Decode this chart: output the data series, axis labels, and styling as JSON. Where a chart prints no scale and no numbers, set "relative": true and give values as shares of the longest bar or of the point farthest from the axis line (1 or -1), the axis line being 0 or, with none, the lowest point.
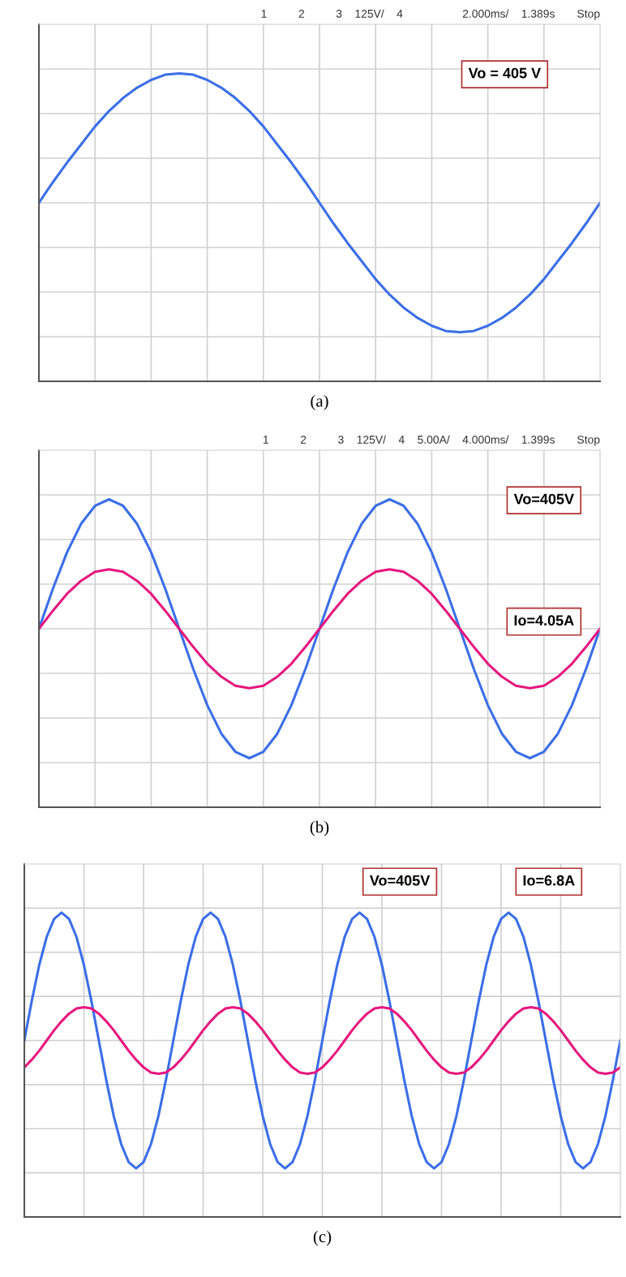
{
  "chart_data": [
    {
      "type": "line",
      "title": "1          2          3    125V/    4                   2.000ms/    1.389s       Stop",
      "xlabel": "(a)",
      "relative": true,
      "grid": true,
      "legend": false,
      "categories": [
        null,
        null,
        null,
        null,
        null,
        null,
        null,
        null,
        null,
        null,
        null,
        null,
        null,
        null,
        null,
        null,
        null,
        null,
        null,
        null,
        null,
        null,
        null,
        null,
        null,
        null,
        null,
        null,
        null,
        null,
        null,
        null,
        null,
        null,
        null,
        null,
        null,
        null,
        null,
        null,
        null
      ],
      "series": [
        {
          "color": "#3a6ee8",
          "values": [
            0,
            0.16,
            0.31,
            0.45,
            0.59,
            0.71,
            0.81,
            0.89,
            0.95,
            0.99,
            1,
            0.99,
            0.95,
            0.89,
            0.81,
            0.71,
            0.59,
            0.45,
            0.31,
            0.16,
            0,
            -0.16,
            -0.31,
            -0.45,
            -0.59,
            -0.71,
            -0.81,
            -0.89,
            -0.95,
            -0.99,
            -1,
            -0.99,
            -0.95,
            -0.89,
            -0.81,
            -0.71,
            -0.59,
            -0.45,
            -0.31,
            -0.16,
            0
          ]
        }
      ],
      "annotations": [
        "Vo = 405 V"
      ]
    },
    {
      "type": "line",
      "title": "1          2          3    125V/    4    5.00A/    4.000ms/    1.399s       Stop",
      "xlabel": "(b)",
      "relative": true,
      "grid": true,
      "legend": false,
      "categories": [
        null,
        null,
        null,
        null,
        null,
        null,
        null,
        null,
        null,
        null,
        null,
        null,
        null,
        null,
        null,
        null,
        null,
        null,
        null,
        null,
        null,
        null,
        null,
        null,
        null,
        null,
        null,
        null,
        null,
        null,
        null,
        null,
        null,
        null,
        null,
        null,
        null,
        null,
        null,
        null,
        null
      ],
      "series": [
        {
          "color": "#3a6ee8",
          "values": [
            0,
            0.31,
            0.59,
            0.81,
            0.95,
            1,
            0.95,
            0.81,
            0.59,
            0.31,
            0,
            -0.31,
            -0.59,
            -0.81,
            -0.95,
            -1,
            -0.95,
            -0.81,
            -0.59,
            -0.31,
            0,
            0.31,
            0.59,
            0.81,
            0.95,
            1,
            0.95,
            0.81,
            0.59,
            0.31,
            0,
            -0.31,
            -0.59,
            -0.81,
            -0.95,
            -1,
            -0.95,
            -0.81,
            -0.59,
            -0.31,
            0
          ]
        },
        {
          "color": "#e6167e",
          "values": [
            0,
            0.14,
            0.27,
            0.37,
            0.44,
            0.46,
            0.44,
            0.37,
            0.27,
            0.14,
            0,
            -0.14,
            -0.27,
            -0.37,
            -0.44,
            -0.46,
            -0.44,
            -0.37,
            -0.27,
            -0.14,
            0,
            0.14,
            0.27,
            0.37,
            0.44,
            0.46,
            0.44,
            0.37,
            0.27,
            0.14,
            0,
            -0.14,
            -0.27,
            -0.37,
            -0.44,
            -0.46,
            -0.44,
            -0.37,
            -0.27,
            -0.14,
            0
          ]
        }
      ],
      "annotations": [
        "Vo=405V",
        "Io=4.05A"
      ]
    },
    {
      "type": "line",
      "xlabel": "(c)",
      "relative": true,
      "grid": true,
      "legend": false,
      "categories": [
        null,
        null,
        null,
        null,
        null,
        null,
        null,
        null,
        null,
        null,
        null,
        null,
        null,
        null,
        null,
        null,
        null,
        null,
        null,
        null,
        null,
        null,
        null,
        null,
        null,
        null,
        null,
        null,
        null,
        null,
        null,
        null,
        null,
        null,
        null,
        null,
        null,
        null,
        null,
        null,
        null,
        null,
        null,
        null,
        null,
        null,
        null,
        null,
        null,
        null,
        null,
        null,
        null,
        null,
        null,
        null,
        null,
        null,
        null,
        null,
        null,
        null,
        null,
        null,
        null,
        null,
        null,
        null,
        null,
        null,
        null,
        null,
        null,
        null,
        null,
        null,
        null,
        null,
        null,
        null,
        null
      ],
      "series": [
        {
          "color": "#3a6ee8",
          "values": [
            0,
            0.31,
            0.59,
            0.81,
            0.95,
            1,
            0.95,
            0.81,
            0.59,
            0.31,
            0,
            -0.31,
            -0.59,
            -0.81,
            -0.95,
            -1,
            -0.95,
            -0.81,
            -0.59,
            -0.31,
            0,
            0.31,
            0.59,
            0.81,
            0.95,
            1,
            0.95,
            0.81,
            0.59,
            0.31,
            0,
            -0.31,
            -0.59,
            -0.81,
            -0.95,
            -1,
            -0.95,
            -0.81,
            -0.59,
            -0.31,
            0,
            0.31,
            0.59,
            0.81,
            0.95,
            1,
            0.95,
            0.81,
            0.59,
            0.31,
            0,
            -0.31,
            -0.59,
            -0.81,
            -0.95,
            -1,
            -0.95,
            -0.81,
            -0.59,
            -0.31,
            0,
            0.31,
            0.59,
            0.81,
            0.95,
            1,
            0.95,
            0.81,
            0.59,
            0.31,
            0,
            -0.31,
            -0.59,
            -0.81,
            -0.95,
            -1,
            -0.95,
            -0.81,
            -0.59,
            -0.31,
            0
          ]
        },
        {
          "color": "#e6167e",
          "values": [
            -0.21,
            -0.15,
            -0.08,
            0,
            0.08,
            0.15,
            0.21,
            0.25,
            0.26,
            0.25,
            0.21,
            0.15,
            0.08,
            0,
            -0.08,
            -0.15,
            -0.21,
            -0.25,
            -0.26,
            -0.25,
            -0.21,
            -0.15,
            -0.08,
            0,
            0.08,
            0.15,
            0.21,
            0.25,
            0.26,
            0.25,
            0.21,
            0.15,
            0.08,
            0,
            -0.08,
            -0.15,
            -0.21,
            -0.25,
            -0.26,
            -0.25,
            -0.21,
            -0.15,
            -0.08,
            0,
            0.08,
            0.15,
            0.21,
            0.25,
            0.26,
            0.25,
            0.21,
            0.15,
            0.08,
            0,
            -0.08,
            -0.15,
            -0.21,
            -0.25,
            -0.26,
            -0.25,
            -0.21,
            -0.15,
            -0.08,
            0,
            0.08,
            0.15,
            0.21,
            0.25,
            0.26,
            0.25,
            0.21,
            0.15,
            0.08,
            0,
            -0.08,
            -0.15,
            -0.21,
            -0.25,
            -0.26,
            -0.25,
            -0.21
          ]
        }
      ],
      "annotations": [
        "Vo=405V",
        "Io=6.8A"
      ]
    }
  ]
}
